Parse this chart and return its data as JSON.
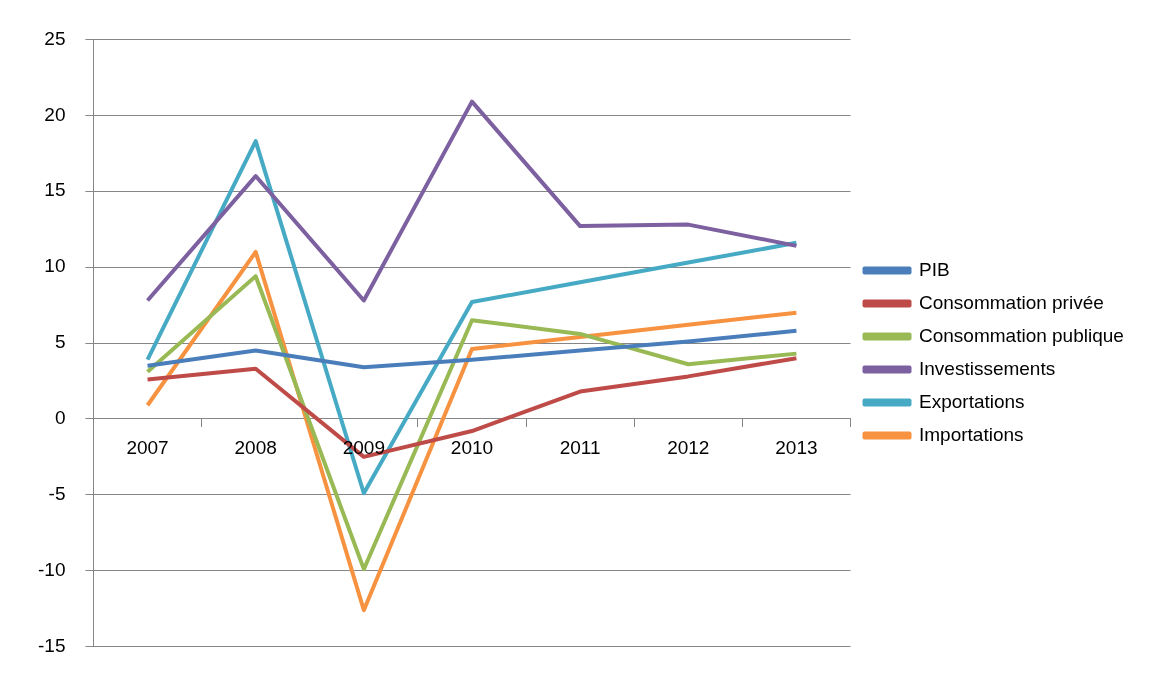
{
  "chart_data": {
    "type": "line",
    "categories": [
      "2007",
      "2008",
      "2009",
      "2010",
      "2011",
      "2012",
      "2013"
    ],
    "series": [
      {
        "name": "PIB",
        "color": "#4a7ebb",
        "values": [
          3.5,
          4.5,
          3.4,
          3.9,
          4.5,
          5.1,
          5.8
        ]
      },
      {
        "name": "Consommation privée",
        "color": "#be4b48",
        "values": [
          2.6,
          3.3,
          -2.5,
          -0.8,
          1.8,
          2.8,
          4.0
        ]
      },
      {
        "name": "Consommation publique",
        "color": "#98b954",
        "values": [
          3.1,
          9.4,
          -9.9,
          6.5,
          5.6,
          3.6,
          4.3
        ]
      },
      {
        "name": "Investissements",
        "color": "#7d60a0",
        "values": [
          7.8,
          16.0,
          7.8,
          20.9,
          12.7,
          12.8,
          11.4
        ]
      },
      {
        "name": "Exportations",
        "color": "#46aac5",
        "values": [
          3.9,
          18.3,
          -4.9,
          7.7,
          9.0,
          10.3,
          11.6
        ]
      },
      {
        "name": "Importations",
        "color": "#f69240",
        "values": [
          0.9,
          11.0,
          -12.6,
          4.6,
          5.4,
          6.2,
          7.0
        ]
      }
    ],
    "ylim": [
      -15,
      25
    ],
    "yticks": [
      -15,
      -10,
      -5,
      0,
      5,
      10,
      15,
      20,
      25
    ],
    "grid": "y",
    "legend": "right",
    "marker": "none",
    "line_style": "solid"
  }
}
